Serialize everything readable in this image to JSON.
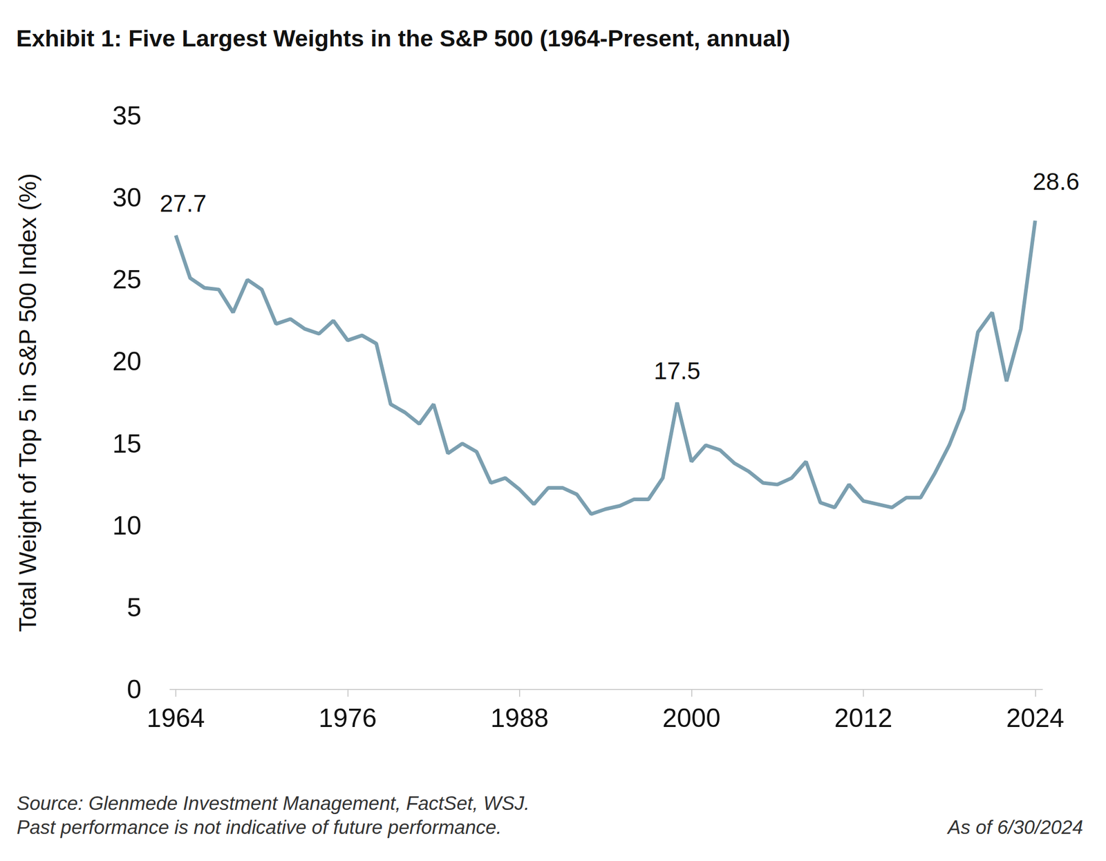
{
  "chart_data": {
    "type": "line",
    "title": "Exhibit 1: Five Largest Weights in the S&P 500 (1964-Present, annual)",
    "y_label": "Total Weight of Top 5 in S&P 500 Index (%)",
    "x": [
      1964,
      1965,
      1966,
      1967,
      1968,
      1969,
      1970,
      1971,
      1972,
      1973,
      1974,
      1975,
      1976,
      1977,
      1978,
      1979,
      1980,
      1981,
      1982,
      1983,
      1984,
      1985,
      1986,
      1987,
      1988,
      1989,
      1990,
      1991,
      1992,
      1993,
      1994,
      1995,
      1996,
      1997,
      1998,
      1999,
      2000,
      2001,
      2002,
      2003,
      2004,
      2005,
      2006,
      2007,
      2008,
      2009,
      2010,
      2011,
      2012,
      2013,
      2014,
      2015,
      2016,
      2017,
      2018,
      2019,
      2020,
      2021,
      2022,
      2023,
      2024
    ],
    "values": [
      27.7,
      25.1,
      24.5,
      24.4,
      23.0,
      25.0,
      24.4,
      22.3,
      22.6,
      22.0,
      21.7,
      22.5,
      21.3,
      21.6,
      21.1,
      17.4,
      16.9,
      16.2,
      17.4,
      14.4,
      15.0,
      14.5,
      12.6,
      12.9,
      12.2,
      11.3,
      12.3,
      12.3,
      11.9,
      10.7,
      11.0,
      11.2,
      11.6,
      11.6,
      12.9,
      17.5,
      13.9,
      14.9,
      14.6,
      13.8,
      13.3,
      12.6,
      12.5,
      12.9,
      13.9,
      11.4,
      11.1,
      12.5,
      11.5,
      11.3,
      11.1,
      11.7,
      11.7,
      13.2,
      14.9,
      17.1,
      21.8,
      23.0,
      18.8,
      22.0,
      28.6
    ],
    "color": "#7b9fb0",
    "annotations": [
      {
        "x": 1964,
        "text": "27.7"
      },
      {
        "x": 1999,
        "text": "17.5"
      },
      {
        "x": 2024,
        "text": "28.6"
      }
    ],
    "xlim": [
      1963.6,
      2024.5
    ],
    "xticks": [
      1964,
      1976,
      1988,
      2000,
      2012,
      2024
    ],
    "ylim": [
      0,
      35
    ],
    "yticks": [
      0,
      5,
      10,
      15,
      20,
      25,
      30,
      35
    ],
    "grid": false,
    "source": "Source: Glenmede Investment Management, FactSet, WSJ.",
    "footnote": "Past performance is not indicative of future performance.",
    "as_of": "As of 6/30/2024"
  }
}
